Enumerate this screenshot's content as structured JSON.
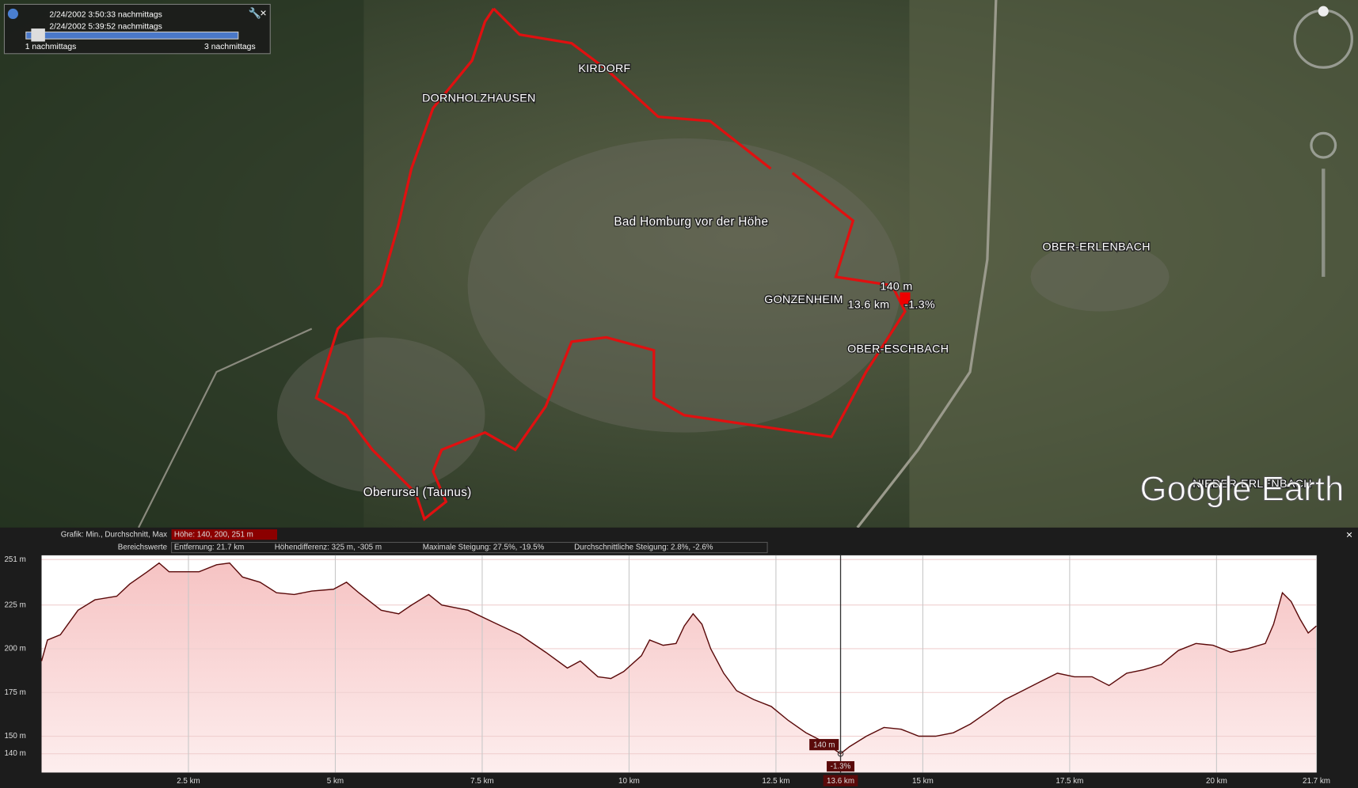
{
  "timeline": {
    "start": "2/24/2002  3:50:33 nachmittags",
    "end": "2/24/2002  5:39:52 nachmittags",
    "scale_start": "1 nachmittags",
    "scale_end": "3 nachmittags"
  },
  "map_labels": [
    "KIRDORF",
    "DORNHOLZHAUSEN",
    "Bad Homburg vor der Höhe",
    "OBER-ERLENBACH",
    "GONZENHEIM",
    "OBER-ESCHBACH",
    "Oberursel (Taunus)",
    "NIEDER-ERLENBACH"
  ],
  "logo": "Google Earth",
  "profile_stats": {
    "graph_label": "Grafik: Min., Durchschnitt, Max",
    "elevation": "Höhe: 140, 200, 251 m",
    "range_label": "Bereichswerte",
    "distance": "Entfernung: 21.7 km",
    "elevation_diff": "Höhendifferenz: 325 m, -305 m",
    "max_slope": "Maximale Steigung: 27.5%, -19.5%",
    "avg_slope": "Durchschnittliche Steigung: 2.8%, -2.6%"
  },
  "chart_data": {
    "type": "area",
    "color": "#5a0a0a",
    "x": [
      0,
      0.1,
      0.32,
      0.62,
      0.91,
      1.28,
      1.5,
      1.8,
      2.0,
      2.17,
      2.39,
      2.68,
      2.98,
      3.2,
      3.42,
      3.72,
      4.0,
      4.3,
      4.6,
      4.97,
      5.19,
      5.4,
      5.78,
      6.08,
      6.3,
      6.59,
      6.81,
      7.26,
      7.7,
      8.14,
      8.58,
      8.95,
      9.17,
      9.47,
      9.69,
      9.91,
      10.21,
      10.35,
      10.58,
      10.8,
      10.94,
      11.09,
      11.24,
      11.39,
      11.61,
      11.83,
      12.12,
      12.42,
      12.71,
      13.01,
      13.3,
      13.6,
      13.75,
      14.04,
      14.34,
      14.63,
      14.93,
      15.22,
      15.52,
      15.81,
      16.11,
      16.4,
      16.7,
      16.99,
      17.29,
      17.58,
      17.88,
      18.17,
      18.47,
      18.76,
      19.06,
      19.35,
      19.65,
      19.94,
      20.24,
      20.53,
      20.83,
      20.97,
      21.12,
      21.27,
      21.42,
      21.56,
      21.7
    ],
    "values": [
      193,
      205,
      208,
      222,
      228,
      230,
      237,
      244,
      249,
      244,
      244,
      244,
      248,
      249,
      241,
      238,
      232,
      231,
      233,
      234,
      238,
      232,
      222,
      220,
      225,
      231,
      225,
      222,
      215,
      208,
      198,
      189,
      193,
      184,
      183,
      187,
      196,
      205,
      202,
      203,
      213,
      220,
      214,
      200,
      186,
      176,
      171,
      167,
      159,
      152,
      147,
      140,
      144,
      150,
      155,
      154,
      150,
      150,
      152,
      157,
      164,
      171,
      176,
      181,
      186,
      184,
      184,
      179,
      186,
      188,
      191,
      199,
      203,
      202,
      198,
      200,
      203,
      214,
      232,
      227,
      217,
      209,
      213
    ],
    "xlim": [
      0,
      21.7
    ],
    "ylim": [
      129.3,
      253.4
    ],
    "xticks": [
      {
        "value": 2.5,
        "label": "2.5 km"
      },
      {
        "value": 5,
        "label": "5 km"
      },
      {
        "value": 7.5,
        "label": "7.5 km"
      },
      {
        "value": 10,
        "label": "10 km"
      },
      {
        "value": 12.5,
        "label": "12.5 km"
      },
      {
        "value": 15,
        "label": "15 km"
      },
      {
        "value": 17.5,
        "label": "17.5 km"
      },
      {
        "value": 20,
        "label": "20 km"
      },
      {
        "value": 21.7,
        "label": "21.7 km"
      }
    ],
    "yticks": [
      {
        "value": 140,
        "label": "140 m"
      },
      {
        "value": 150,
        "label": "150 m"
      },
      {
        "value": 175,
        "label": "175 m"
      },
      {
        "value": 200,
        "label": "200 m"
      },
      {
        "value": 225,
        "label": "225 m"
      },
      {
        "value": 251,
        "label": "251 m"
      }
    ],
    "grid": true,
    "cursor": {
      "x": 13.6,
      "x_label": "13.6 km",
      "elevation": 140,
      "elevation_label": "140 m",
      "slope_label": "-1.3%"
    }
  }
}
